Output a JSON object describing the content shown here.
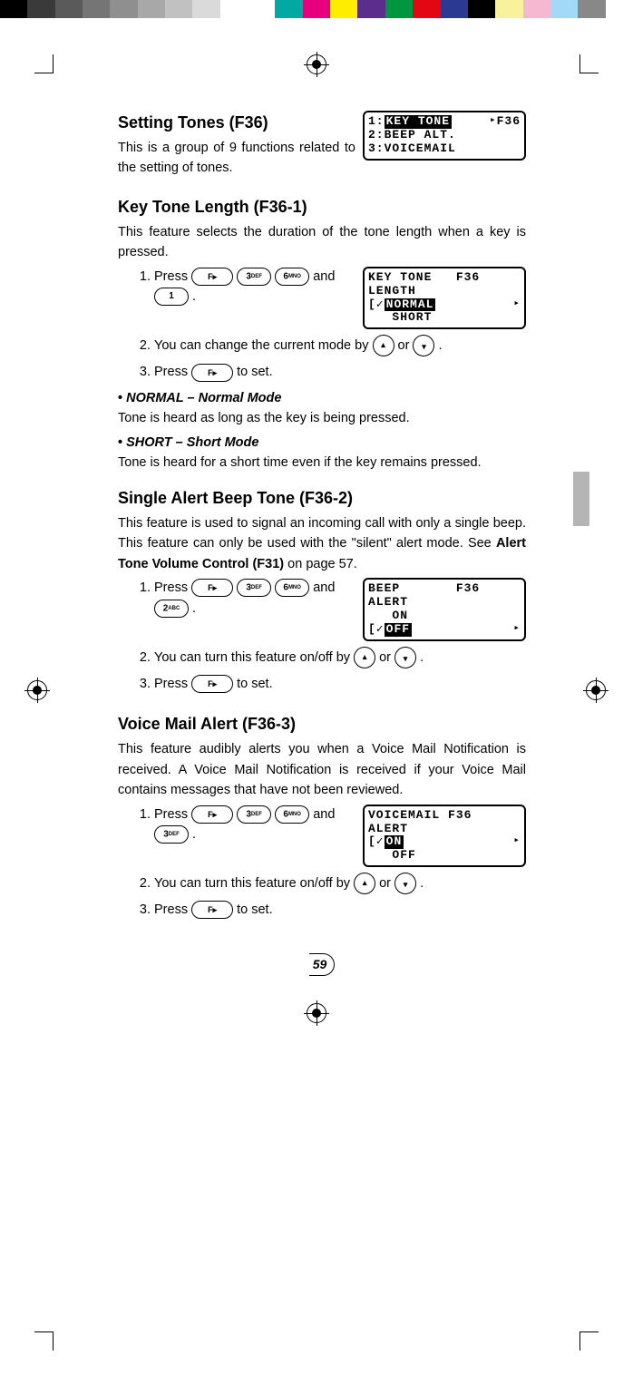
{
  "color_bar": [
    "#000000",
    "#3a3a3a",
    "#5a5a5a",
    "#757575",
    "#8f8f8f",
    "#a8a8a8",
    "#c1c1c1",
    "#dadada",
    "#ffffff",
    "#ffffff",
    "#00a9a4",
    "#e6007e",
    "#ffed00",
    "#5b2d8d",
    "#009640",
    "#e30613",
    "#2b3990",
    "#000000",
    "#f9f29d",
    "#f4b8d0",
    "#a2d9f7",
    "#888888",
    "#ffffff"
  ],
  "header1": {
    "title": "Setting Tones (F36)",
    "intro": "This is a group of 9 functions related to the setting of tones.",
    "lcd": {
      "top": "F36",
      "r1_pre": "1:",
      "r1_hl": "KEY TONE",
      "r2": "2:BEEP ALT.",
      "r3": "3:VOICEMAIL"
    }
  },
  "sec1": {
    "title": "Key Tone Length (F36-1)",
    "intro": "This feature selects the duration of the tone length when a key is pressed.",
    "lcd": {
      "r1": "KEY TONE   F36",
      "r2": "LENGTH",
      "r3_mark": "[✓",
      "r3_hl": "NORMAL",
      "r4": "   SHORT"
    },
    "step1a": "Press ",
    "k3": "3",
    "k3s": "DEF",
    "k6": "6",
    "k6s": "MNO",
    "step1b": " and ",
    "k1": "1",
    "step1c": " .",
    "step2a": "You can change the current mode by ",
    "or": " or ",
    "step2b": " .",
    "step3a": "Press ",
    "step3b": " to set.",
    "mode1_h": "NORMAL – Normal Mode",
    "mode1_t": "Tone is heard as long as the key is being pressed.",
    "mode2_h": "SHORT – Short Mode",
    "mode2_t": "Tone is heard for a short time even if the key remains pressed."
  },
  "sec2": {
    "title": "Single Alert Beep Tone (F36-2)",
    "intro": "This feature is used to signal an incoming call with only a single beep. This feature can only be used with the \"silent\" alert mode. See ",
    "intro_bold": "Alert Tone Volume Control (F31)",
    "intro2": " on page 57.",
    "lcd": {
      "r1": "BEEP       F36",
      "r2": "ALERT",
      "r3": "   ON",
      "r4_mark": "[✓",
      "r4_hl": "OFF"
    },
    "k2": "2",
    "k2s": "ABC",
    "step2a": "You can turn this feature on/off by "
  },
  "sec3": {
    "title": "Voice Mail Alert (F36-3)",
    "intro": "This feature audibly alerts you when a Voice Mail Notification is received. A Voice Mail Notification is received if your Voice Mail contains messages that have not been reviewed.",
    "lcd": {
      "r1": "VOICEMAIL F36",
      "r2": "ALERT",
      "r3_mark": "[✓",
      "r3_hl": "ON",
      "r4": "   OFF"
    },
    "k3": "3",
    "k3s": "DEF"
  },
  "page_number": "59"
}
